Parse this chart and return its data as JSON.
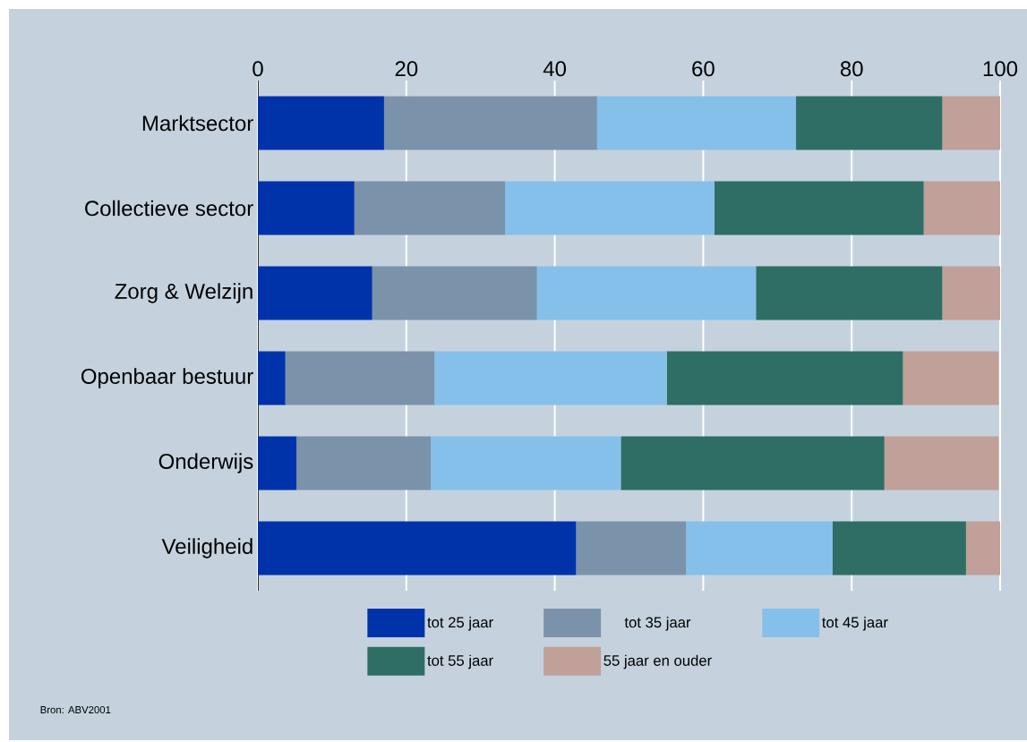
{
  "chart_data": {
    "type": "bar",
    "orientation": "horizontal",
    "stacked": true,
    "categories": [
      "Marktsector",
      "Collectieve sector",
      "Zorg & Welzijn",
      "Openbaar bestuur",
      "Onderwijs",
      "Veiligheid"
    ],
    "series": [
      {
        "name": "tot 25 jaar",
        "color": "#0033aa",
        "values": [
          17.0,
          13.0,
          15.4,
          3.7,
          5.2,
          42.9
        ]
      },
      {
        "name": "tot 35 jaar",
        "color": "#7a93aa",
        "values": [
          28.7,
          20.3,
          22.2,
          20.1,
          18.1,
          14.8
        ]
      },
      {
        "name": "tot 45 jaar",
        "color": "#85c0ea",
        "values": [
          26.8,
          28.2,
          29.5,
          31.3,
          25.6,
          19.7
        ]
      },
      {
        "name": "tot 55 jaar",
        "color": "#2e6e64",
        "values": [
          19.7,
          28.2,
          25.1,
          31.8,
          35.5,
          18.0
        ]
      },
      {
        "name": "55 jaar en ouder",
        "color": "#c0a098",
        "values": [
          7.8,
          10.3,
          7.8,
          12.9,
          15.4,
          4.6
        ]
      }
    ],
    "xlim": [
      0,
      100
    ],
    "xticks": [
      0,
      20,
      40,
      60,
      80,
      100
    ],
    "grid": "x",
    "legend": "bottom",
    "annotations": [
      "Bron: ABV2001"
    ]
  }
}
